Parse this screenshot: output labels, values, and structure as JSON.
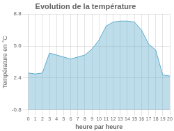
{
  "chart_data": {
    "type": "area",
    "title": "Evolution de la température",
    "xlabel": "heure par heure",
    "ylabel": "Température en °C",
    "x": [
      0,
      1,
      2,
      3,
      4,
      5,
      6,
      7,
      8,
      9,
      10,
      11,
      12,
      13,
      14,
      15,
      16,
      17,
      18,
      19,
      20
    ],
    "values": [
      2.9,
      2.8,
      2.9,
      4.9,
      4.7,
      4.5,
      4.3,
      4.5,
      4.7,
      5.3,
      6.2,
      7.6,
      8.0,
      8.1,
      8.1,
      8.0,
      7.2,
      5.8,
      5.2,
      2.7,
      2.6
    ],
    "xlim": [
      0,
      20
    ],
    "ylim": [
      -0.8,
      8.8
    ],
    "xticks": [
      0,
      1,
      2,
      3,
      4,
      5,
      6,
      7,
      8,
      9,
      10,
      11,
      12,
      13,
      14,
      15,
      16,
      17,
      18,
      19,
      20
    ],
    "yticks": [
      -0.8,
      2.4,
      5.6,
      8.8
    ],
    "color": "#5aabcc",
    "grid": true
  }
}
